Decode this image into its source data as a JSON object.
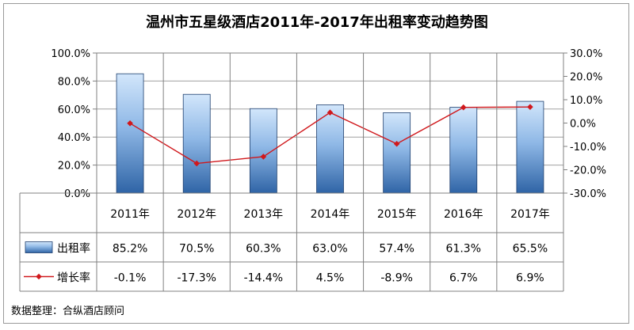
{
  "chart_data": {
    "type": "bar",
    "title": "温州市五星级酒店2011年-2017年出租率变动趋势图",
    "categories": [
      "2011年",
      "2012年",
      "2013年",
      "2014年",
      "2015年",
      "2016年",
      "2017年"
    ],
    "series": [
      {
        "name": "出租率",
        "type": "bar",
        "axis": "left",
        "values": [
          85.2,
          70.5,
          60.3,
          63.0,
          57.4,
          61.3,
          65.5
        ],
        "labels": [
          "85.2%",
          "70.5%",
          "60.3%",
          "63.0%",
          "57.4%",
          "61.3%",
          "65.5%"
        ]
      },
      {
        "name": "增长率",
        "type": "line",
        "axis": "right",
        "values": [
          -0.1,
          -17.3,
          -14.4,
          4.5,
          -8.9,
          6.7,
          6.9
        ],
        "labels": [
          "-0.1%",
          "-17.3%",
          "-14.4%",
          "4.5%",
          "-8.9%",
          "6.7%",
          "6.9%"
        ]
      }
    ],
    "y_left": {
      "range": [
        0,
        100
      ],
      "ticks": [
        "0.0%",
        "20.0%",
        "40.0%",
        "60.0%",
        "80.0%",
        "100.0%"
      ],
      "tick_values": [
        0,
        20,
        40,
        60,
        80,
        100
      ]
    },
    "y_right": {
      "range": [
        -30,
        30
      ],
      "ticks": [
        "-30.0%",
        "-20.0%",
        "-10.0%",
        "0.0%",
        "10.0%",
        "20.0%",
        "30.0%"
      ],
      "tick_values": [
        -30,
        -20,
        -10,
        0,
        10,
        20,
        30
      ]
    },
    "grid": true,
    "legend": "data-table",
    "source_note": "数据整理：合纵酒店顾问",
    "colors": {
      "bar_top": "#d2e6fb",
      "bar_bottom": "#2f64a6",
      "bar_stroke": "#1e3f6e",
      "line": "#d0181c"
    }
  }
}
